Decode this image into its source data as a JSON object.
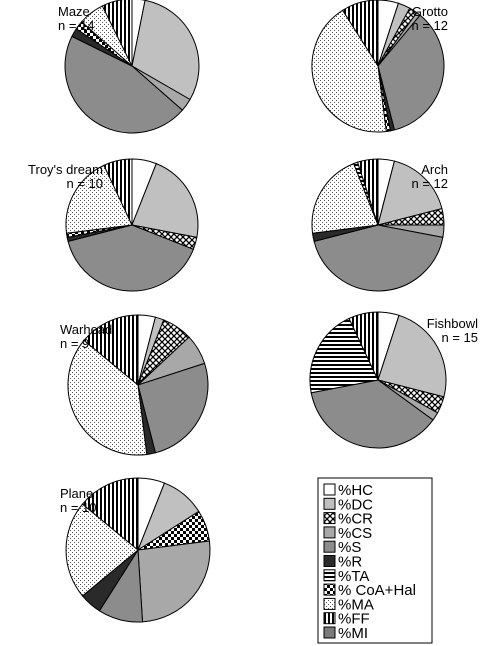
{
  "chart_data": {
    "type": "pie",
    "legend": {
      "position": "bottom-right",
      "entries": [
        {
          "key": "HC",
          "label": "%HC",
          "fill": "#ffffff"
        },
        {
          "key": "DC",
          "label": "%DC",
          "fill": "#c0c0c0"
        },
        {
          "key": "CR",
          "label": "%CR",
          "fill": "url(#pat-cross)"
        },
        {
          "key": "CS",
          "label": "%CS",
          "fill": "#a8a8a8"
        },
        {
          "key": "S",
          "label": "%S",
          "fill": "#8c8c8c"
        },
        {
          "key": "R",
          "label": "%R",
          "fill": "#2a2a2a"
        },
        {
          "key": "TA",
          "label": "%TA",
          "fill": "url(#pat-hstripe)"
        },
        {
          "key": "CoA",
          "label": "% CoA+Hal",
          "fill": "url(#pat-check)"
        },
        {
          "key": "MA",
          "label": "%MA",
          "fill": "url(#pat-dots)"
        },
        {
          "key": "FF",
          "label": "%FF",
          "fill": "url(#pat-vstripe)"
        },
        {
          "key": "MI",
          "label": "%MI",
          "fill": "#7a7a7a"
        }
      ]
    },
    "pies": [
      {
        "title": "Maze",
        "n_label": "n = 14",
        "slices": [
          {
            "key": "HC",
            "value": 3
          },
          {
            "key": "DC",
            "value": 29
          },
          {
            "key": "CS",
            "value": 3
          },
          {
            "key": "S",
            "value": 44
          },
          {
            "key": "R",
            "value": 2
          },
          {
            "key": "CoA",
            "value": 2
          },
          {
            "key": "MA",
            "value": 6
          },
          {
            "key": "FF",
            "value": 7
          }
        ]
      },
      {
        "title": "Grotto",
        "n_label": "n = 12",
        "slices": [
          {
            "key": "HC",
            "value": 5
          },
          {
            "key": "DC",
            "value": 3
          },
          {
            "key": "CR",
            "value": 2
          },
          {
            "key": "CS",
            "value": 1
          },
          {
            "key": "S",
            "value": 35
          },
          {
            "key": "R",
            "value": 1
          },
          {
            "key": "CoA",
            "value": 1
          },
          {
            "key": "MA",
            "value": 43
          },
          {
            "key": "FF",
            "value": 9
          }
        ]
      },
      {
        "title": "Troy's dream",
        "n_label": "n = 10",
        "slices": [
          {
            "key": "HC",
            "value": 6
          },
          {
            "key": "DC",
            "value": 22
          },
          {
            "key": "CR",
            "value": 3
          },
          {
            "key": "S",
            "value": 40
          },
          {
            "key": "R",
            "value": 1
          },
          {
            "key": "CoA",
            "value": 1
          },
          {
            "key": "MA",
            "value": 20
          },
          {
            "key": "FF",
            "value": 7
          }
        ]
      },
      {
        "title": "Arch",
        "n_label": "n = 12",
        "slices": [
          {
            "key": "HC",
            "value": 4
          },
          {
            "key": "DC",
            "value": 17
          },
          {
            "key": "CR",
            "value": 4
          },
          {
            "key": "CS",
            "value": 3
          },
          {
            "key": "S",
            "value": 43
          },
          {
            "key": "R",
            "value": 2
          },
          {
            "key": "MA",
            "value": 21
          },
          {
            "key": "TA",
            "value": 1
          },
          {
            "key": "FF",
            "value": 5
          }
        ]
      },
      {
        "title": "Warhead",
        "n_label": "n = 9",
        "slices": [
          {
            "key": "HC",
            "value": 4
          },
          {
            "key": "DC",
            "value": 2
          },
          {
            "key": "CR",
            "value": 7
          },
          {
            "key": "CS",
            "value": 7
          },
          {
            "key": "S",
            "value": 26
          },
          {
            "key": "R",
            "value": 2
          },
          {
            "key": "MA",
            "value": 38
          },
          {
            "key": "FF",
            "value": 14
          }
        ]
      },
      {
        "title": "Fishbowl",
        "n_label": "n = 15",
        "slices": [
          {
            "key": "HC",
            "value": 5
          },
          {
            "key": "DC",
            "value": 24
          },
          {
            "key": "CR",
            "value": 4
          },
          {
            "key": "CS",
            "value": 2
          },
          {
            "key": "S",
            "value": 37
          },
          {
            "key": "TA",
            "value": 21
          },
          {
            "key": "FF",
            "value": 7
          }
        ]
      },
      {
        "title": "Plane",
        "n_label": "n = 10",
        "slices": [
          {
            "key": "HC",
            "value": 6
          },
          {
            "key": "DC",
            "value": 10
          },
          {
            "key": "CoA",
            "value": 7
          },
          {
            "key": "CS",
            "value": 26
          },
          {
            "key": "S",
            "value": 10
          },
          {
            "key": "R",
            "value": 5
          },
          {
            "key": "MA",
            "value": 22
          },
          {
            "key": "FF",
            "value": 14
          }
        ]
      }
    ]
  }
}
